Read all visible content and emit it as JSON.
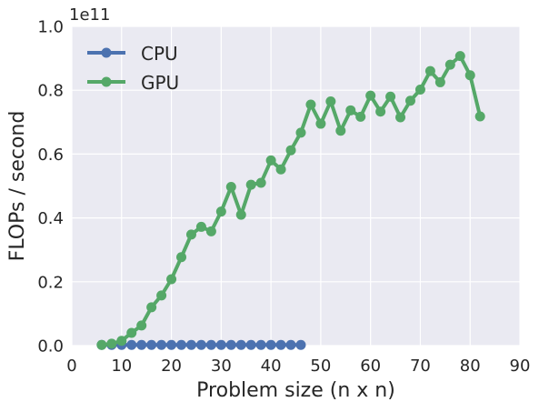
{
  "chart_data": {
    "type": "line",
    "title": "",
    "xlabel": "Problem size (n x n)",
    "ylabel": "FLOPs / second",
    "y_multiplier_label": "1e11",
    "xlim": [
      0,
      90
    ],
    "ylim": [
      0,
      1.0
    ],
    "x_ticks": [
      "0",
      "10",
      "20",
      "30",
      "40",
      "50",
      "60",
      "70",
      "80",
      "90"
    ],
    "y_ticks": [
      "0.0",
      "0.2",
      "0.4",
      "0.6",
      "0.8",
      "1.0"
    ],
    "grid": true,
    "legend_position": "top-left",
    "colors": {
      "background": "#eaeaf2",
      "grid": "#ffffff",
      "CPU": "#4c72b0",
      "GPU": "#55a868"
    },
    "series": [
      {
        "name": "CPU",
        "x": [
          6,
          8,
          10,
          12,
          14,
          16,
          18,
          20,
          22,
          24,
          26,
          28,
          30,
          32,
          34,
          36,
          38,
          40,
          42,
          44,
          46
        ],
        "y": [
          0.002,
          0.002,
          0.002,
          0.002,
          0.002,
          0.002,
          0.002,
          0.002,
          0.002,
          0.002,
          0.002,
          0.002,
          0.002,
          0.002,
          0.002,
          0.002,
          0.002,
          0.002,
          0.002,
          0.002,
          0.002
        ]
      },
      {
        "name": "GPU",
        "x": [
          6,
          8,
          10,
          12,
          14,
          16,
          18,
          20,
          22,
          24,
          26,
          28,
          30,
          32,
          34,
          36,
          38,
          40,
          42,
          44,
          46,
          48,
          50,
          52,
          54,
          56,
          58,
          60,
          62,
          64,
          66,
          68,
          70,
          72,
          74,
          76,
          78,
          80,
          82
        ],
        "y": [
          0.002,
          0.006,
          0.015,
          0.04,
          0.063,
          0.12,
          0.157,
          0.208,
          0.277,
          0.348,
          0.372,
          0.358,
          0.42,
          0.497,
          0.41,
          0.504,
          0.51,
          0.58,
          0.552,
          0.612,
          0.667,
          0.755,
          0.695,
          0.765,
          0.673,
          0.737,
          0.717,
          0.783,
          0.733,
          0.78,
          0.715,
          0.767,
          0.802,
          0.86,
          0.825,
          0.88,
          0.907,
          0.847,
          0.718
        ]
      }
    ]
  }
}
